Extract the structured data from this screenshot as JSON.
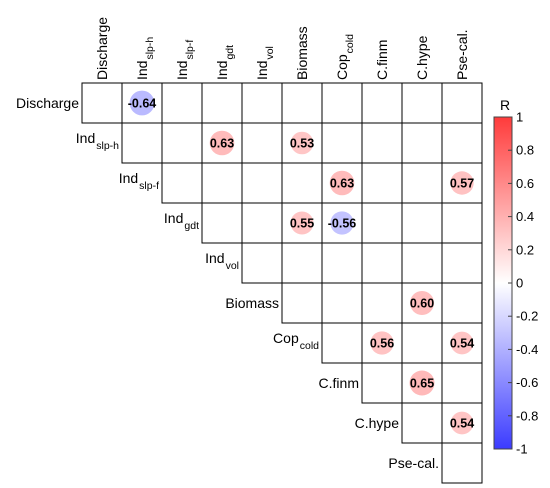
{
  "chart_data": {
    "type": "heatmap",
    "variables": [
      {
        "main": "Discharge",
        "sub": ""
      },
      {
        "main": "Ind",
        "sub": "slp-h"
      },
      {
        "main": "Ind",
        "sub": "slp-f"
      },
      {
        "main": "Ind",
        "sub": "gdt"
      },
      {
        "main": "Ind",
        "sub": "vol"
      },
      {
        "main": "Biomass",
        "sub": ""
      },
      {
        "main": "Cop",
        "sub": "cold"
      },
      {
        "main": "C.finm",
        "sub": ""
      },
      {
        "main": "C.hype",
        "sub": ""
      },
      {
        "main": "Pse-cal.",
        "sub": ""
      }
    ],
    "cells": [
      {
        "row": 0,
        "col": 1,
        "value": -0.64,
        "label": "-0.64"
      },
      {
        "row": 1,
        "col": 3,
        "value": 0.63,
        "label": "0.63"
      },
      {
        "row": 1,
        "col": 5,
        "value": 0.53,
        "label": "0.53"
      },
      {
        "row": 2,
        "col": 6,
        "value": 0.63,
        "label": "0.63"
      },
      {
        "row": 2,
        "col": 9,
        "value": 0.57,
        "label": "0.57"
      },
      {
        "row": 3,
        "col": 5,
        "value": 0.55,
        "label": "0.55"
      },
      {
        "row": 3,
        "col": 6,
        "value": -0.56,
        "label": "-0.56"
      },
      {
        "row": 5,
        "col": 8,
        "value": 0.6,
        "label": "0.60"
      },
      {
        "row": 6,
        "col": 7,
        "value": 0.56,
        "label": "0.56"
      },
      {
        "row": 6,
        "col": 9,
        "value": 0.54,
        "label": "0.54"
      },
      {
        "row": 7,
        "col": 8,
        "value": 0.65,
        "label": "0.65"
      },
      {
        "row": 8,
        "col": 9,
        "value": 0.54,
        "label": "0.54"
      }
    ],
    "colorbar": {
      "title": "R",
      "range": [
        -1,
        1
      ],
      "ticks": [
        "1",
        "0.8",
        "0.6",
        "0.4",
        "0.2",
        "0",
        "-0.2",
        "-0.4",
        "-0.6",
        "-0.8",
        "-1"
      ],
      "colors": {
        "negative": "#3b3bff",
        "zero": "#ffffff",
        "positive": "#ff3b3b"
      }
    }
  }
}
